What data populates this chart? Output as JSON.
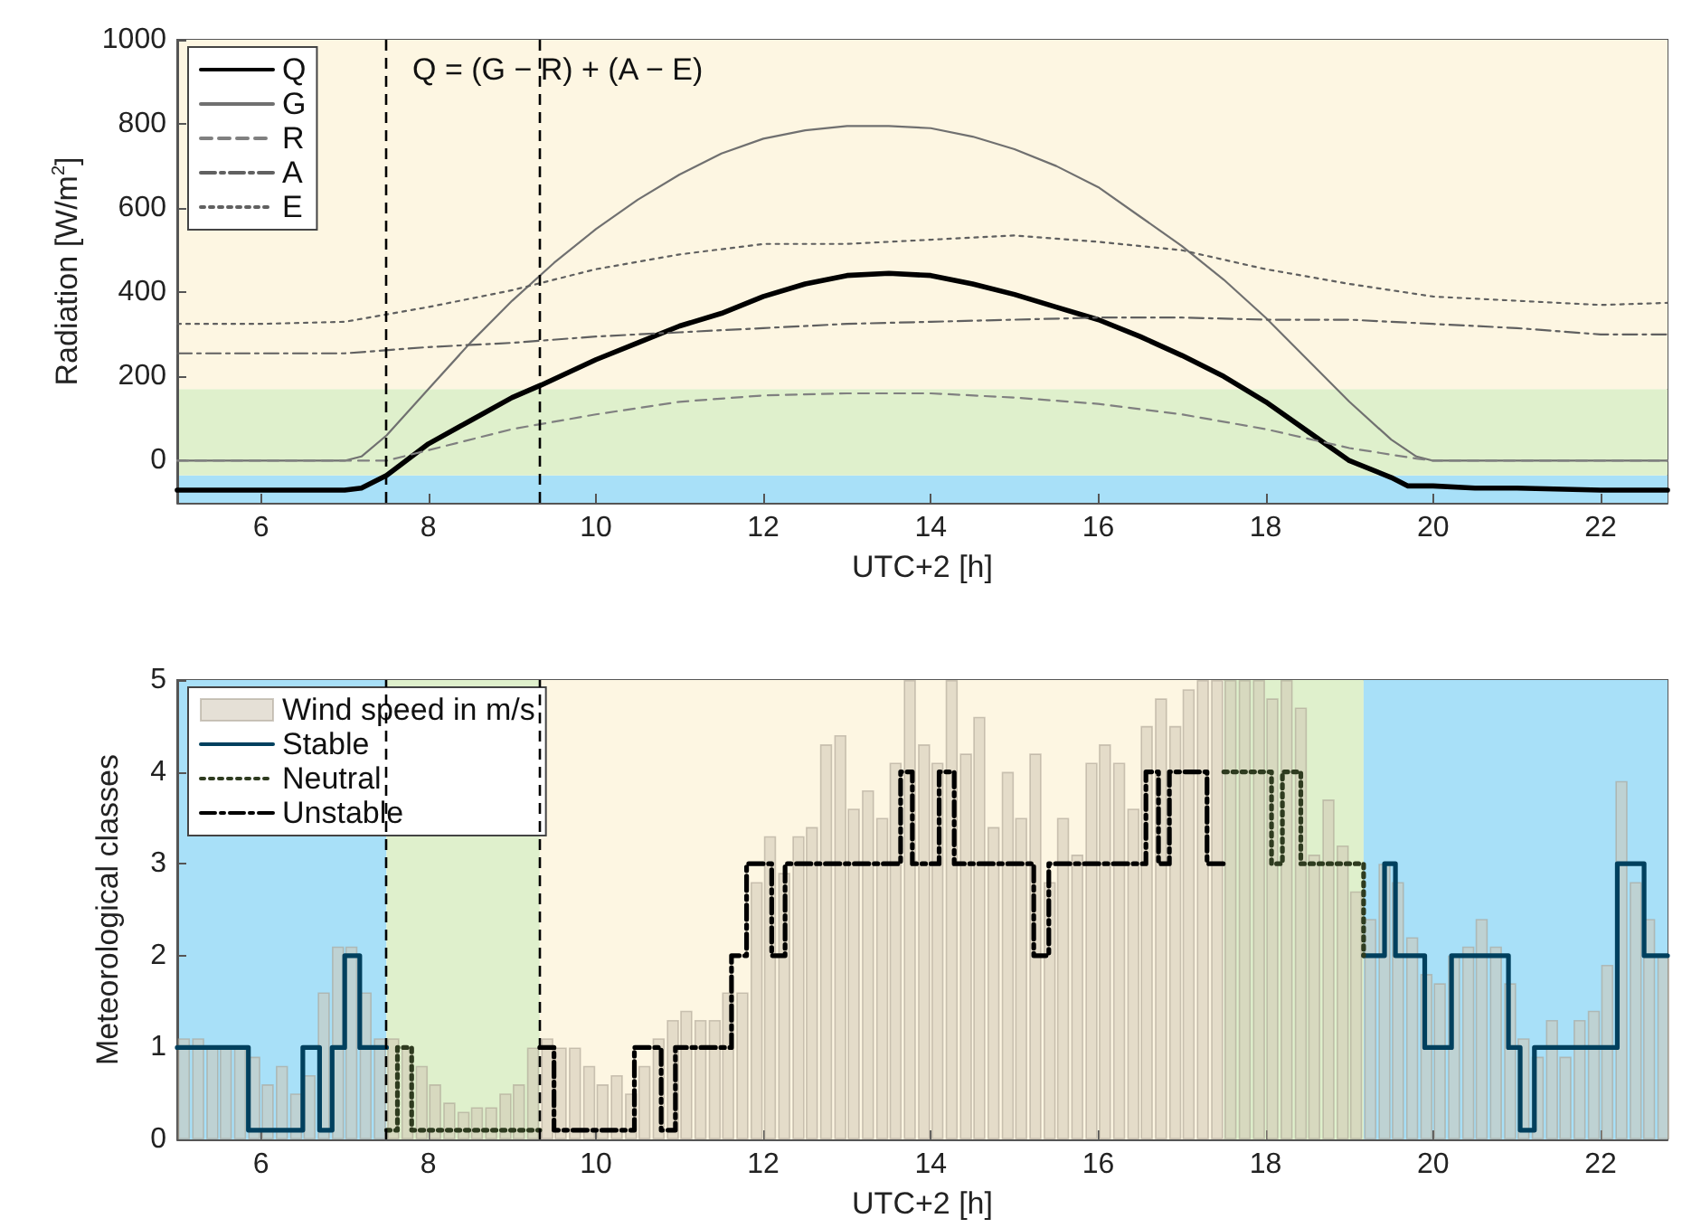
{
  "chart_data": [
    {
      "type": "line",
      "xlabel": "UTC+2 [h]",
      "ylabel": "Radiation [W/m$^{2}$]",
      "annotations": [
        "Q = (G − R) + (A − E)"
      ],
      "xlim": [
        5,
        22.8
      ],
      "xticks": [
        6,
        8,
        10,
        12,
        14,
        16,
        18,
        20,
        22
      ],
      "ylim": [
        -100,
        1000
      ],
      "yticks": [
        0,
        200,
        400,
        600,
        800,
        1000
      ],
      "grid": false,
      "legend": "top left",
      "bands": [
        {
          "axis": "y",
          "from": -100,
          "to": -35,
          "color": "#a8e0f8"
        },
        {
          "axis": "y",
          "from": -35,
          "to": 170,
          "color": "#dff0cc"
        },
        {
          "axis": "y",
          "from": 170,
          "to": 1000,
          "color": "#fdf6e2"
        }
      ],
      "ref_lines": [
        {
          "axis": "x",
          "value": 7.5,
          "color": "#000000",
          "line_style": "dashed"
        },
        {
          "axis": "x",
          "value": 9.33,
          "color": "#000000",
          "line_style": "dashed"
        }
      ],
      "series": [
        {
          "name": "Q",
          "color": "#000000",
          "line_style": "solid",
          "x": [
            5,
            6,
            7,
            7.2,
            7.5,
            8,
            8.5,
            9,
            9.35,
            10,
            10.5,
            11,
            11.5,
            12,
            12.5,
            13,
            13.5,
            14,
            14.5,
            15,
            15.5,
            16,
            16.5,
            17,
            17.5,
            18,
            18.5,
            19,
            19.5,
            19.7,
            20,
            20.5,
            21,
            22,
            22.8
          ],
          "values": [
            -70,
            -70,
            -70,
            -65,
            -35,
            40,
            95,
            150,
            180,
            240,
            280,
            320,
            350,
            390,
            420,
            440,
            445,
            440,
            420,
            395,
            365,
            335,
            295,
            250,
            200,
            140,
            70,
            0,
            -40,
            -60,
            -60,
            -65,
            -65,
            -70,
            -70
          ]
        },
        {
          "name": "G",
          "color": "#707070",
          "line_style": "solid",
          "x": [
            5,
            7,
            7.2,
            7.5,
            8,
            8.5,
            9,
            9.5,
            10,
            10.5,
            11,
            11.5,
            12,
            12.5,
            13,
            13.5,
            14,
            14.5,
            15,
            15.5,
            16,
            16.5,
            17,
            17.5,
            18,
            18.5,
            19,
            19.5,
            19.8,
            20,
            22.8
          ],
          "values": [
            0,
            0,
            10,
            60,
            170,
            280,
            380,
            470,
            550,
            620,
            680,
            730,
            765,
            785,
            795,
            795,
            790,
            770,
            740,
            700,
            650,
            580,
            510,
            430,
            340,
            240,
            140,
            50,
            10,
            0,
            0
          ]
        },
        {
          "name": "R",
          "color": "#808080",
          "line_style": "dashed",
          "x": [
            5,
            7.5,
            8,
            9,
            10,
            11,
            12,
            13,
            14,
            15,
            16,
            17,
            18,
            19,
            19.8,
            20,
            22.8
          ],
          "values": [
            0,
            0,
            25,
            75,
            110,
            140,
            155,
            160,
            160,
            150,
            135,
            110,
            75,
            30,
            5,
            0,
            0
          ]
        },
        {
          "name": "A",
          "color": "#606060",
          "line_style": "dashdot",
          "x": [
            5,
            6,
            7,
            8,
            9,
            10,
            11,
            12,
            13,
            14,
            15,
            16,
            17,
            18,
            19,
            20,
            21,
            22,
            22.8
          ],
          "values": [
            255,
            255,
            255,
            270,
            280,
            295,
            305,
            315,
            325,
            330,
            335,
            340,
            340,
            335,
            335,
            325,
            315,
            300,
            300
          ]
        },
        {
          "name": "E",
          "color": "#606060",
          "line_style": "dotted",
          "x": [
            5,
            6,
            7,
            8,
            9,
            10,
            11,
            12,
            13,
            14,
            15,
            16,
            17,
            18,
            19,
            20,
            21,
            22,
            22.8
          ],
          "values": [
            325,
            325,
            330,
            365,
            405,
            455,
            490,
            515,
            515,
            525,
            535,
            520,
            500,
            455,
            420,
            390,
            380,
            370,
            375
          ]
        }
      ]
    },
    {
      "type": "bar",
      "xlabel": "UTC+2 [h]",
      "ylabel": "Meteorological classes",
      "xlim": [
        5,
        22.8
      ],
      "xticks": [
        6,
        8,
        10,
        12,
        14,
        16,
        18,
        20,
        22
      ],
      "ylim": [
        0,
        5
      ],
      "yticks": [
        0,
        1,
        2,
        3,
        4,
        5
      ],
      "grid": false,
      "legend": "top left",
      "bands": [
        {
          "axis": "x",
          "from": 5,
          "to": 7.5,
          "color": "#a8e0f8"
        },
        {
          "axis": "x",
          "from": 7.5,
          "to": 9.33,
          "color": "#dff0cc"
        },
        {
          "axis": "x",
          "from": 9.33,
          "to": 17.5,
          "color": "#fdf6e2"
        },
        {
          "axis": "x",
          "from": 17.5,
          "to": 19.17,
          "color": "#dff0cc"
        },
        {
          "axis": "x",
          "from": 19.17,
          "to": 22.8,
          "color": "#a8e0f8"
        }
      ],
      "ref_lines": [
        {
          "axis": "x",
          "value": 7.5,
          "color": "#000000",
          "line_style": "dashed"
        },
        {
          "axis": "x",
          "value": 9.33,
          "color": "#000000",
          "line_style": "dashed"
        }
      ],
      "series": [
        {
          "name": "Wind speed in m/s",
          "type": "bar",
          "color": "#cfc6b4",
          "x": [
            5.08,
            5.25,
            5.42,
            5.58,
            5.75,
            5.92,
            6.08,
            6.25,
            6.42,
            6.58,
            6.75,
            6.92,
            7.08,
            7.25,
            7.42,
            7.58,
            7.75,
            7.92,
            8.08,
            8.25,
            8.42,
            8.58,
            8.75,
            8.92,
            9.08,
            9.25,
            9.42,
            9.58,
            9.75,
            9.92,
            10.08,
            10.25,
            10.42,
            10.58,
            10.75,
            10.92,
            11.08,
            11.25,
            11.42,
            11.58,
            11.75,
            11.92,
            12.08,
            12.25,
            12.42,
            12.58,
            12.75,
            12.92,
            13.08,
            13.25,
            13.42,
            13.58,
            13.75,
            13.92,
            14.08,
            14.25,
            14.42,
            14.58,
            14.75,
            14.92,
            15.08,
            15.25,
            15.42,
            15.58,
            15.75,
            15.92,
            16.08,
            16.25,
            16.42,
            16.58,
            16.75,
            16.92,
            17.08,
            17.25,
            17.42,
            17.58,
            17.75,
            17.92,
            18.08,
            18.25,
            18.42,
            18.58,
            18.75,
            18.92,
            19.08,
            19.25,
            19.42,
            19.58,
            19.75,
            19.92,
            20.08,
            20.25,
            20.42,
            20.58,
            20.75,
            20.92,
            21.08,
            21.25,
            21.42,
            21.58,
            21.75,
            21.92,
            22.08,
            22.25,
            22.42,
            22.58,
            22.75
          ],
          "values": [
            1.1,
            1.1,
            1.0,
            1.0,
            1.0,
            0.9,
            0.6,
            0.8,
            0.5,
            0.7,
            1.6,
            2.1,
            2.1,
            1.6,
            1.1,
            1.1,
            1.0,
            0.8,
            0.6,
            0.4,
            0.3,
            0.35,
            0.35,
            0.5,
            0.6,
            1.0,
            1.1,
            1.0,
            1.0,
            0.8,
            0.6,
            0.7,
            0.5,
            0.8,
            1.1,
            1.3,
            1.4,
            1.3,
            1.3,
            1.6,
            1.6,
            2.8,
            3.3,
            2.9,
            3.3,
            3.4,
            4.3,
            4.4,
            3.6,
            3.8,
            3.5,
            4.1,
            5.0,
            4.3,
            4.1,
            5.0,
            4.2,
            4.6,
            3.4,
            4.0,
            3.5,
            4.2,
            2.8,
            3.5,
            3.1,
            4.1,
            4.3,
            4.1,
            3.6,
            4.5,
            4.8,
            4.5,
            4.9,
            5.0,
            5.0,
            5.0,
            5.0,
            5.0,
            4.8,
            5.0,
            4.7,
            3.1,
            3.7,
            3.2,
            2.7,
            2.4,
            3.0,
            2.8,
            2.2,
            1.8,
            1.7,
            2.0,
            2.1,
            2.4,
            2.1,
            1.7,
            1.1,
            0.9,
            1.3,
            0.9,
            1.3,
            1.4,
            1.9,
            3.9,
            2.8,
            2.4,
            2.0
          ]
        },
        {
          "name": "Stable",
          "type": "step",
          "color": "#00405e",
          "line_style": "solid",
          "x": [
            5,
            5.85,
            6.5,
            6.7,
            6.85,
            7.0,
            7.18,
            7.5,
            13,
            19.17,
            19.42,
            19.55,
            19.9,
            20.22,
            20.9,
            21.04,
            21.21,
            22.2,
            22.52,
            22.8
          ],
          "values": [
            1,
            0.1,
            1,
            0.1,
            1,
            2,
            1,
            1,
            null,
            2,
            3,
            2,
            1,
            2,
            1,
            0.1,
            1,
            3,
            2,
            2
          ]
        },
        {
          "name": "Neutral",
          "type": "step",
          "color": "#2e3b1f",
          "line_style": "dotted",
          "x": [
            7.5,
            7.63,
            7.8,
            9.33,
            13,
            17.5,
            18.07,
            18.2,
            18.42,
            19.17
          ],
          "values": [
            0.1,
            1,
            0.1,
            0.1,
            null,
            4,
            3,
            4,
            3,
            2
          ]
        },
        {
          "name": "Unstable",
          "type": "step",
          "color": "#000000",
          "line_style": "dashdot",
          "x": [
            9.33,
            9.5,
            10.46,
            10.78,
            10.95,
            11.62,
            11.8,
            12.1,
            12.26,
            13.64,
            13.78,
            14.1,
            14.28,
            15.23,
            15.41,
            16.57,
            16.72,
            16.85,
            17.3,
            17.5
          ],
          "values": [
            1,
            0.1,
            1,
            0.1,
            1,
            2,
            3,
            2,
            3,
            4,
            3,
            4,
            3,
            2,
            3,
            4,
            3,
            4,
            3,
            3
          ]
        }
      ]
    }
  ]
}
